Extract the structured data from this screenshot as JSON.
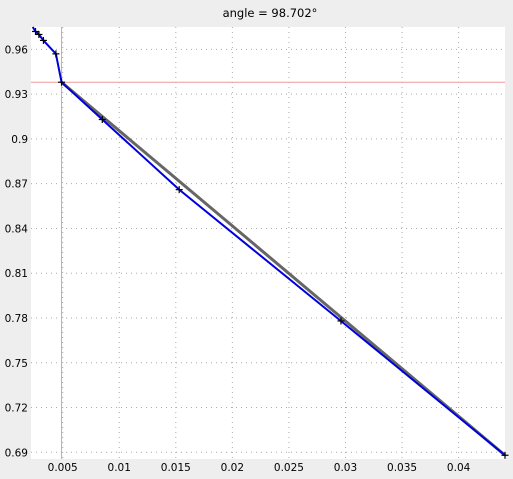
{
  "chart_data": {
    "type": "line",
    "title": "angle = 98.702°",
    "xlabel": "",
    "ylabel": "",
    "xlim": [
      0.0022,
      0.0441
    ],
    "ylim": [
      0.6855,
      0.975
    ],
    "x_ticks": [
      0.005,
      0.01,
      0.015,
      0.02,
      0.025,
      0.03,
      0.035,
      0.04
    ],
    "x_tick_labels": [
      "0.005",
      "0.01",
      "0.015",
      "0.02",
      "0.025",
      "0.03",
      "0.035",
      "0.04"
    ],
    "y_ticks": [
      0.69,
      0.72,
      0.75,
      0.78,
      0.81,
      0.84,
      0.87,
      0.9,
      0.93,
      0.96
    ],
    "y_tick_labels": [
      "0.69",
      "0.72",
      "0.75",
      "0.78",
      "0.81",
      "0.84",
      "0.87",
      "0.9",
      "0.93",
      "0.96"
    ],
    "grid": true,
    "colors": {
      "curve": "#0000dd",
      "secant": "#666666",
      "crosshair": "#ee9999",
      "markers": "#000000",
      "background": "#ffffff",
      "grid": "#aaaaaa"
    },
    "series": [
      {
        "role": "curve",
        "x": [
          0.00235,
          0.0026,
          0.0029,
          0.0033,
          0.0044,
          0.0049,
          0.0085,
          0.0153,
          0.0296,
          0.0441
        ],
        "y": [
          0.975,
          0.972,
          0.97,
          0.966,
          0.957,
          0.938,
          0.913,
          0.866,
          0.778,
          0.688
        ],
        "markers": [
          false,
          true,
          true,
          true,
          true,
          true,
          true,
          true,
          true,
          true
        ]
      },
      {
        "role": "secant",
        "x": [
          0.0049,
          0.0441
        ],
        "y": [
          0.938,
          0.688
        ]
      }
    ],
    "crosshair": {
      "x": 0.0049,
      "y": 0.938
    }
  }
}
